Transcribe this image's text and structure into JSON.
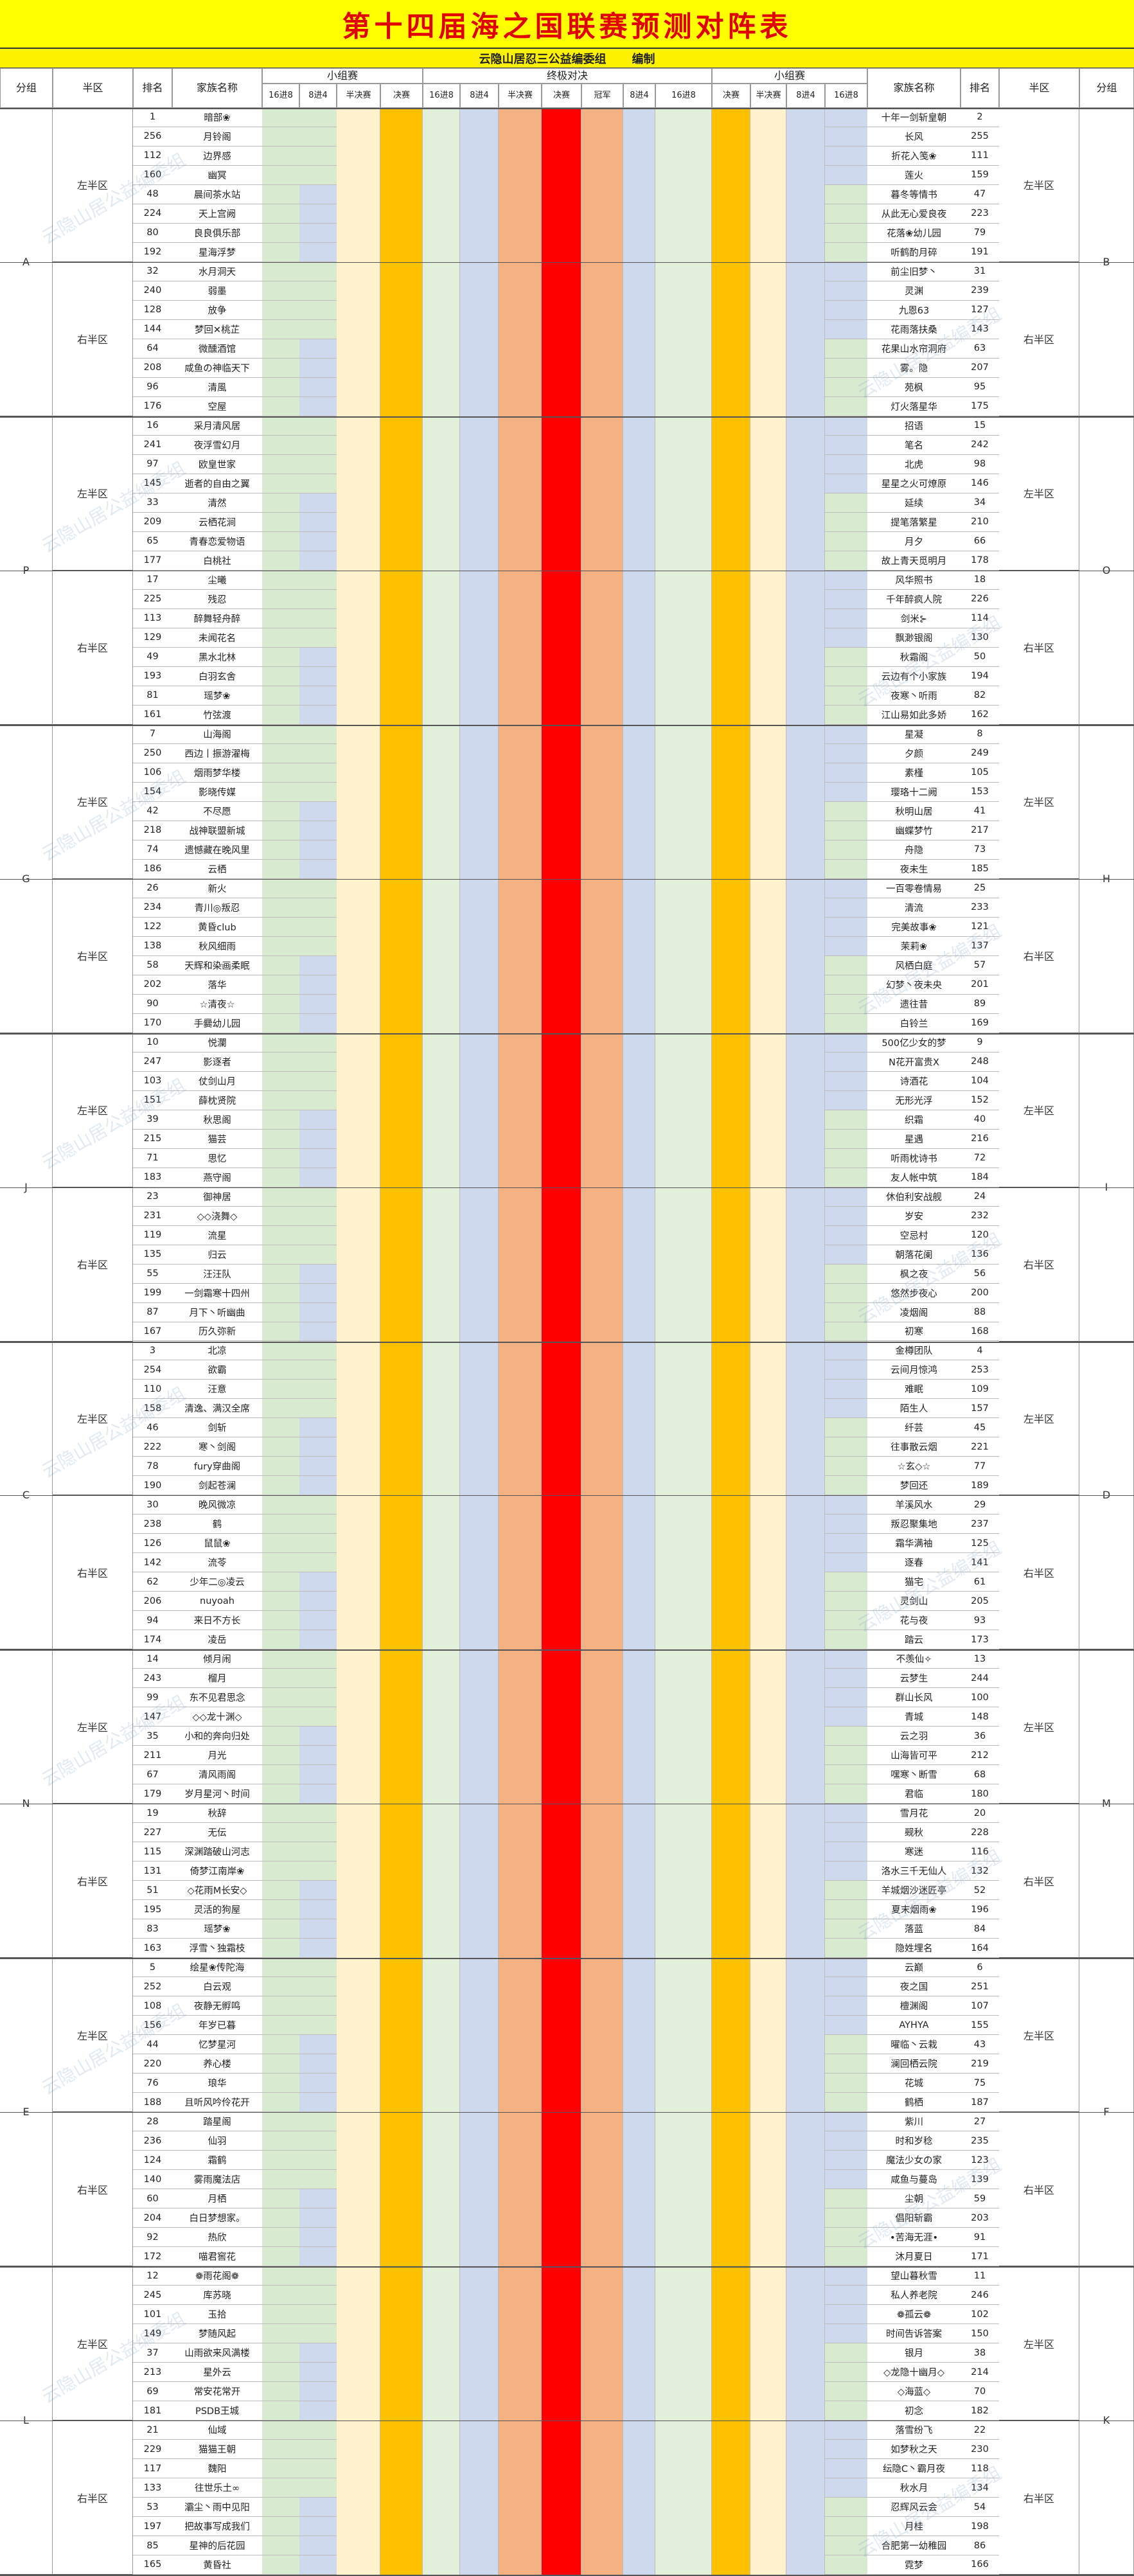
{
  "title": "第十四届海之国联赛预测对阵表",
  "subtitle": {
    "org": "云隐山居忍三公益编委组",
    "role": "编制"
  },
  "header": {
    "group": "分组",
    "half": "半区",
    "rank": "排名",
    "family": "家族名称",
    "small_group": "小组赛",
    "final_fight": "终极对决",
    "r16": "16进8",
    "r8": "8进4",
    "semi": "半决赛",
    "final": "决赛",
    "champion": "冠军",
    "final_sm": "半决赛"
  },
  "watermark": "云隐山居公益编委组",
  "halves": {
    "left": "左半区",
    "right": "右半区"
  },
  "colors": {
    "bg_green": "#d8ead0",
    "bg_blue": "#cfd9ee",
    "bg_cream": "#fff2cc",
    "bg_orange": "#ffbf00",
    "bg_peach": "#f4b183",
    "bg_red": "#ff0000",
    "bg_yellow": "#ffd966",
    "bg_light": "#e2efda",
    "bg_amber": "#ffc000",
    "title_bg": "#ffff00",
    "title_fg": "#e00000"
  },
  "groups": [
    {
      "left": "A",
      "right": "B",
      "rows": [
        [
          "1",
          "暗部❀",
          "十年一剑斩皇朝",
          "2"
        ],
        [
          "256",
          "月铃阁",
          "长风",
          "255"
        ],
        [
          "112",
          "边界感",
          "折花入笺❀",
          "111"
        ],
        [
          "160",
          "幽冥",
          "莲火",
          "159"
        ],
        [
          "48",
          "晨间茶水站",
          "暮冬等情书",
          "47"
        ],
        [
          "224",
          "天上宫阙",
          "从此无心爱良夜",
          "223"
        ],
        [
          "80",
          "良良俱乐部",
          "花落❀幼儿园",
          "79"
        ],
        [
          "192",
          "星海浮梦",
          "听鹤酌月碎",
          "191"
        ],
        [
          "32",
          "水月洞天",
          "前尘旧梦丶",
          "31"
        ],
        [
          "240",
          "弱墨",
          "灵渊",
          "239"
        ],
        [
          "128",
          "放争",
          "九恩63",
          "127"
        ],
        [
          "144",
          "梦回✕桃芷",
          "花雨落扶桑",
          "143"
        ],
        [
          "64",
          "微醺酒馆",
          "花果山水帘洞府",
          "63"
        ],
        [
          "208",
          "咸鱼の神临天下",
          "雾。隐",
          "207"
        ],
        [
          "96",
          "清風",
          "苑枫",
          "95"
        ],
        [
          "176",
          "空屋",
          "灯火落星华",
          "175"
        ]
      ]
    },
    {
      "left": "P",
      "right": "O",
      "rows": [
        [
          "16",
          "采月清风居",
          "招语",
          "15"
        ],
        [
          "241",
          "夜浮雪幻月",
          "笔名",
          "242"
        ],
        [
          "97",
          "欧皇世家",
          "北虎",
          "98"
        ],
        [
          "145",
          "逝者的自由之翼",
          "星星之火可燎原",
          "146"
        ],
        [
          "33",
          "清然",
          "延续",
          "34"
        ],
        [
          "209",
          "云栖花涧",
          "提笔落繁星",
          "210"
        ],
        [
          "65",
          "青春恋爱物语",
          "月夕",
          "66"
        ],
        [
          "177",
          "白桃社",
          "故上青天觅明月",
          "178"
        ],
        [
          "17",
          "尘曦",
          "风华照书",
          "18"
        ],
        [
          "225",
          "残忍",
          "千年醉疯人院",
          "226"
        ],
        [
          "113",
          "醉舞轻舟醉",
          "剑米⊱",
          "114"
        ],
        [
          "129",
          "未闻花名",
          "飘渺银阁",
          "130"
        ],
        [
          "49",
          "黑水北林",
          "秋霜阁",
          "50"
        ],
        [
          "193",
          "白羽玄舍",
          "云边有个小家族",
          "194"
        ],
        [
          "81",
          "瑶梦❀",
          "夜寒丶听雨",
          "82"
        ],
        [
          "161",
          "竹弦渡",
          "江山易如此多娇",
          "162"
        ]
      ]
    },
    {
      "left": "G",
      "right": "H",
      "rows": [
        [
          "7",
          "山海阁",
          "星凝",
          "8"
        ],
        [
          "250",
          "西边丨振游濯梅",
          "夕颜",
          "249"
        ],
        [
          "106",
          "烟雨梦华楼",
          "素槿",
          "105"
        ],
        [
          "154",
          "影晓传媒",
          "璎珞十二阙",
          "153"
        ],
        [
          "42",
          "不尽愿",
          "秋明山居",
          "41"
        ],
        [
          "218",
          "战神联盟新城",
          "幽蝶梦竹",
          "217"
        ],
        [
          "74",
          "遗憾藏在晚风里",
          "舟隐",
          "73"
        ],
        [
          "186",
          "云栖",
          "夜未生",
          "185"
        ],
        [
          "26",
          "新火",
          "一百零卷情易",
          "25"
        ],
        [
          "234",
          "青川◎叛忍",
          "清流",
          "233"
        ],
        [
          "122",
          "黄昏club",
          "完美故事❀",
          "121"
        ],
        [
          "138",
          "秋风细雨",
          "茉莉❀",
          "137"
        ],
        [
          "58",
          "天辉和染画柔眠",
          "风栖白庭",
          "57"
        ],
        [
          "202",
          "落华",
          "幻梦丶夜未央",
          "201"
        ],
        [
          "90",
          "☆清夜☆",
          "遗往昔",
          "89"
        ],
        [
          "170",
          "手爨幼儿园",
          "白铃兰",
          "169"
        ]
      ]
    },
    {
      "left": "J",
      "right": "I",
      "rows": [
        [
          "10",
          "悦瀾",
          "500亿少女的梦",
          "9"
        ],
        [
          "247",
          "影逐者",
          "N花开富贵X",
          "248"
        ],
        [
          "103",
          "仗剑山月",
          "诗酒花",
          "104"
        ],
        [
          "151",
          "薛枕贤院",
          "无形光浮",
          "152"
        ],
        [
          "39",
          "秋思阁",
          "织霜",
          "40"
        ],
        [
          "215",
          "猫芸",
          "星遇",
          "216"
        ],
        [
          "71",
          "思忆",
          "听雨枕诗书",
          "72"
        ],
        [
          "183",
          "燕守阁",
          "友人帐中筑",
          "184"
        ],
        [
          "23",
          "御神居",
          "休伯利安战舰",
          "24"
        ],
        [
          "231",
          "◇◇浇舞◇",
          "岁安",
          "232"
        ],
        [
          "119",
          "流星",
          "空忌村",
          "120"
        ],
        [
          "135",
          "归云",
          "朝落花阑",
          "136"
        ],
        [
          "55",
          "汪汪队",
          "枫之夜",
          "56"
        ],
        [
          "199",
          "一剑霜寒十四州",
          "悠然步夜心",
          "200"
        ],
        [
          "87",
          "月下丶听幽曲",
          "凌烟阁",
          "88"
        ],
        [
          "167",
          "历久弥新",
          "初寒",
          "168"
        ]
      ]
    },
    {
      "left": "C",
      "right": "D",
      "rows": [
        [
          "3",
          "北凉",
          "金樽团队",
          "4"
        ],
        [
          "254",
          "欲霸",
          "云间月惊鸿",
          "253"
        ],
        [
          "110",
          "汪意",
          "难眠",
          "109"
        ],
        [
          "158",
          "清逸、满汉全席",
          "陌生人",
          "157"
        ],
        [
          "46",
          "剑斩",
          "纤芸",
          "45"
        ],
        [
          "222",
          "寒丶剑阁",
          "往事散云烟",
          "221"
        ],
        [
          "78",
          "fury穿曲阁",
          "☆玄◇☆",
          "77"
        ],
        [
          "190",
          "剑起苍澜",
          "梦回还",
          "189"
        ],
        [
          "30",
          "晚风微凉",
          "羊溪风水",
          "29"
        ],
        [
          "238",
          "鹤",
          "叛忍聚集地",
          "237"
        ],
        [
          "126",
          "鼠鼠❀",
          "霜华满袖",
          "125"
        ],
        [
          "142",
          "流苓",
          "逐春",
          "141"
        ],
        [
          "62",
          "少年二◎凌云",
          "猫宅",
          "61"
        ],
        [
          "206",
          "nuyoah",
          "灵剑山",
          "205"
        ],
        [
          "94",
          "来日不方长",
          "花与夜",
          "93"
        ],
        [
          "174",
          "凌岳",
          "踏云",
          "173"
        ]
      ]
    },
    {
      "left": "N",
      "right": "M",
      "rows": [
        [
          "14",
          "倾月闹",
          "不羡仙✧",
          "13"
        ],
        [
          "243",
          "榴月",
          "云梦生",
          "244"
        ],
        [
          "99",
          "东不见君思念",
          "群山长风",
          "100"
        ],
        [
          "147",
          "◇◇龙十渊◇",
          "青城",
          "148"
        ],
        [
          "35",
          "小和的奔向归处",
          "云之羽",
          "36"
        ],
        [
          "211",
          "月光",
          "山海皆可平",
          "212"
        ],
        [
          "67",
          "清风雨阁",
          "嘿寒丶断雪",
          "68"
        ],
        [
          "179",
          "岁月星河丶时间",
          "君临",
          "180"
        ],
        [
          "19",
          "秋辞",
          "雪月花",
          "20"
        ],
        [
          "227",
          "无伝",
          "觋秋",
          "228"
        ],
        [
          "115",
          "深渊踏破山河志",
          "寒迷",
          "116"
        ],
        [
          "131",
          "倚梦江南岸❀",
          "洛水三千无仙人",
          "132"
        ],
        [
          "51",
          "◇花雨M长安◇",
          "羊城烟沙迷匠亭",
          "52"
        ],
        [
          "195",
          "灵活的狗屋",
          "夏末烟雨❀",
          "196"
        ],
        [
          "83",
          "瑶梦❀",
          "落蓝",
          "84"
        ],
        [
          "163",
          "浮雪丶独霜枝",
          "隐姓埋名",
          "164"
        ]
      ]
    },
    {
      "left": "E",
      "right": "F",
      "rows": [
        [
          "5",
          "绘星❀传陀海",
          "云巅",
          "6"
        ],
        [
          "252",
          "白云观",
          "夜之国",
          "251"
        ],
        [
          "108",
          "夜静无孵鸣",
          "檀渊阁",
          "107"
        ],
        [
          "156",
          "年岁已暮",
          "AYHYA",
          "155"
        ],
        [
          "44",
          "忆梦星河",
          "曜临丶云栽",
          "43"
        ],
        [
          "220",
          "养心楼",
          "澜回栖云院",
          "219"
        ],
        [
          "76",
          "琅华",
          "花城",
          "75"
        ],
        [
          "188",
          "且听风吟伶花开",
          "鹤栖",
          "187"
        ],
        [
          "28",
          "踏星阁",
          "紫川",
          "27"
        ],
        [
          "236",
          "仙羽",
          "时和岁稔",
          "235"
        ],
        [
          "124",
          "霜鹤",
          "魔法少女の家",
          "123"
        ],
        [
          "140",
          "雾雨魔法店",
          "咸鱼与蔓岛",
          "139"
        ],
        [
          "60",
          "月栖",
          "尘朝",
          "59"
        ],
        [
          "204",
          "白日梦想家。",
          "倡阳斩霸",
          "203"
        ],
        [
          "92",
          "热欣",
          "•苦海无涯•",
          "91"
        ],
        [
          "172",
          "喵君窖花",
          "沐月夏日",
          "171"
        ]
      ]
    },
    {
      "left": "L",
      "right": "K",
      "rows": [
        [
          "12",
          "❁雨花阁❁",
          "望山暮秋雪",
          "11"
        ],
        [
          "245",
          "库苏晓",
          "私人养老院",
          "246"
        ],
        [
          "101",
          "玉拾",
          "❁孤云❁",
          "102"
        ],
        [
          "149",
          "梦随风起",
          "时间告诉答案",
          "150"
        ],
        [
          "37",
          "山雨欲来风满楼",
          "银月",
          "38"
        ],
        [
          "213",
          "星外云",
          "◇龙隐十幽月◇",
          "214"
        ],
        [
          "69",
          "常安花常开",
          "◇海蓝◇",
          "70"
        ],
        [
          "181",
          "PSDB王城",
          "初念",
          "182"
        ],
        [
          "21",
          "仙域",
          "落雪纷飞",
          "22"
        ],
        [
          "229",
          "猫猫王朝",
          "如梦秋之天",
          "230"
        ],
        [
          "117",
          "魏阳",
          "纭隐C丶霸月夜",
          "118"
        ],
        [
          "133",
          "往世乐土∞",
          "秋水月",
          "134"
        ],
        [
          "53",
          "灞尘丶雨中见阳",
          "忍辉风云会",
          "54"
        ],
        [
          "197",
          "把故事写成我们",
          "月桂",
          "198"
        ],
        [
          "85",
          "星神的后花园",
          "合肥第一幼稚园",
          "86"
        ],
        [
          "165",
          "黄昏社",
          "霓梦",
          "166"
        ]
      ]
    }
  ]
}
